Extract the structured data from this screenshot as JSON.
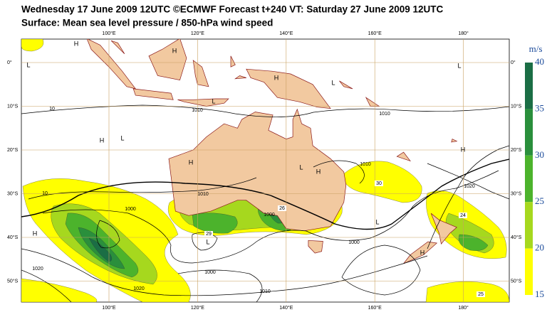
{
  "header": {
    "title": "Wednesday 17 June 2009 12UTC ©ECMWF Forecast t+240 VT: Saturday 27 June 2009 12UTC",
    "subtitle": "Surface: Mean sea level pressure / 850-hPa wind speed"
  },
  "map": {
    "latitude_labels": [
      "0°",
      "10°S",
      "20°S",
      "30°S",
      "40°S",
      "50°S"
    ],
    "longitude_labels": [
      "100°E",
      "120°E",
      "140°E",
      "160°E",
      "180°"
    ],
    "pressure_centers": [
      "H",
      "L",
      "H",
      "H",
      "L",
      "L",
      "L",
      "H",
      "L",
      "H",
      "L",
      "H",
      "H",
      "H",
      "L",
      "L",
      "H"
    ],
    "isobar_labels": [
      1010,
      1010,
      1010,
      1000,
      1000,
      1000,
      1020,
      1020,
      1020,
      1010,
      1000,
      1010
    ],
    "wind_labels": [
      30,
      26,
      29,
      25,
      24,
      10,
      10
    ]
  },
  "colorbar": {
    "unit": "m/s",
    "ticks": [
      40,
      35,
      30,
      25,
      20,
      15
    ]
  }
}
